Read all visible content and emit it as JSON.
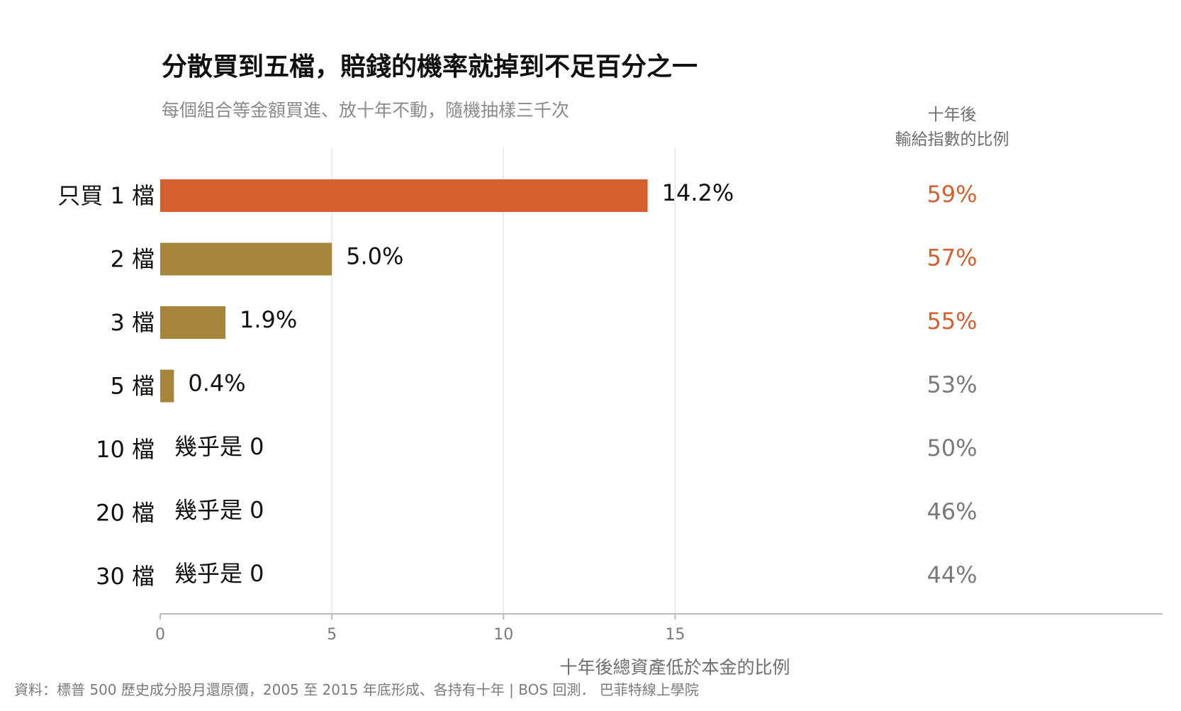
{
  "chart_data": {
    "type": "bar",
    "orientation": "horizontal",
    "title": "分散買到五檔，賠錢的機率就掉到不足百分之一",
    "subtitle": "每個組合等金額買進、放十年不動，隨機抽樣三千次",
    "categories": [
      "只買 1 檔",
      "2 檔",
      "3 檔",
      "5 檔",
      "10 檔",
      "20 檔",
      "30 檔"
    ],
    "values": [
      14.2,
      5.0,
      1.9,
      0.4,
      0,
      0,
      0
    ],
    "value_labels": [
      "14.2%",
      "5.0%",
      "1.9%",
      "0.4%",
      "幾乎是 0",
      "幾乎是 0",
      "幾乎是 0"
    ],
    "xlabel": "十年後總資產低於本金的比例",
    "xlim": [
      0,
      29.2
    ],
    "xticks": [
      0,
      5,
      10,
      15
    ],
    "grid": true,
    "side_column": {
      "header_line1": "十年後",
      "header_line2": "輸給指數的比例",
      "values": [
        "59%",
        "57%",
        "55%",
        "53%",
        "50%",
        "46%",
        "44%"
      ],
      "highlight": [
        true,
        true,
        true,
        false,
        false,
        false,
        false
      ]
    },
    "source": "資料：標普 500 歷史成分股月還原價，2005 至 2015 年底形成、各持有十年 | BOS 回測．  巴菲特線上學院",
    "colors": {
      "highlight_bar": "#d55f2e",
      "bar": "#a6863b",
      "highlight_text": "#d55f2e",
      "muted_text": "#7a7a7a",
      "grid": "#e6e6e6",
      "axis": "#bbbbbb"
    }
  }
}
